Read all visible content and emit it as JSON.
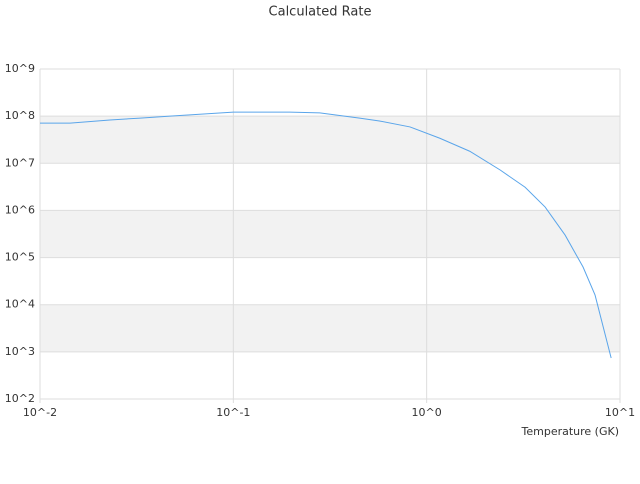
{
  "chart_data": {
    "type": "line",
    "title": "Calculated Rate",
    "x_label": "Temperature (GK)",
    "xscale": "log",
    "yscale": "log",
    "grid": true,
    "bands": true,
    "xlim": [
      0.01,
      10
    ],
    "ylim": [
      100,
      1000000000
    ],
    "xticks": [
      {
        "value": 0.01,
        "label": "10^-2"
      },
      {
        "value": 0.1,
        "label": "10^-1"
      },
      {
        "value": 1,
        "label": "10^0"
      },
      {
        "value": 10,
        "label": "10^1"
      }
    ],
    "yticks": [
      {
        "value": 100,
        "label": "10^2"
      },
      {
        "value": 1000,
        "label": "10^3"
      },
      {
        "value": 10000,
        "label": "10^4"
      },
      {
        "value": 100000,
        "label": "10^5"
      },
      {
        "value": 1000000,
        "label": "10^6"
      },
      {
        "value": 10000000,
        "label": "10^7"
      },
      {
        "value": 100000000,
        "label": "10^8"
      },
      {
        "value": 1000000000,
        "label": "10^9"
      }
    ],
    "x": [
      0.01,
      0.0143,
      0.023,
      0.033,
      0.047,
      0.067,
      0.1,
      0.196,
      0.28,
      0.45,
      0.57,
      0.82,
      1.17,
      1.67,
      2.4,
      3.23,
      4.1,
      5.2,
      6.44,
      7.43,
      9.0
    ],
    "series": [
      {
        "color": "#5aa5ea",
        "values": [
          71000000,
          71000000,
          83000000,
          91000000,
          100000000,
          110000000,
          122000000,
          122000000,
          117000000,
          91000000,
          79000000,
          59000000,
          34000000,
          18000000,
          7200000,
          3100000,
          1180000,
          300000,
          63000,
          16000,
          740
        ]
      }
    ]
  }
}
